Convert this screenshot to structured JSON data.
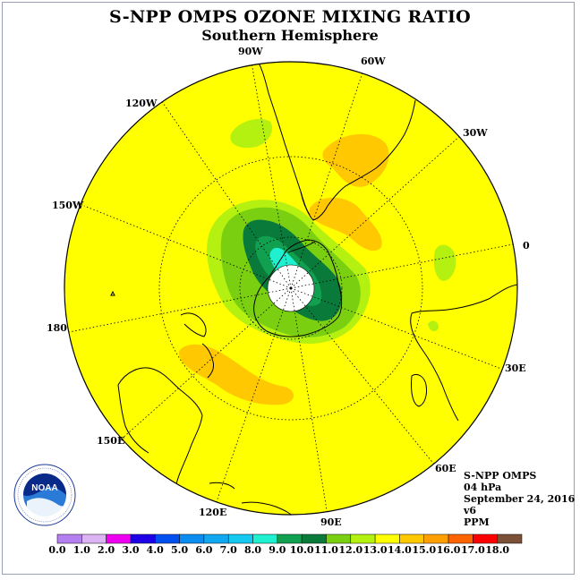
{
  "title": "S-NPP OMPS OZONE MIXING RATIO",
  "subtitle": "Southern Hemisphere",
  "longitude_labels": [
    {
      "id": "90w",
      "text": "90W"
    },
    {
      "id": "60w",
      "text": "60W"
    },
    {
      "id": "120w",
      "text": "120W"
    },
    {
      "id": "30w",
      "text": "30W"
    },
    {
      "id": "150w",
      "text": "150W"
    },
    {
      "id": "0",
      "text": "0"
    },
    {
      "id": "180",
      "text": "180"
    },
    {
      "id": "30e",
      "text": "30E"
    },
    {
      "id": "150e",
      "text": "150E"
    },
    {
      "id": "60e",
      "text": "60E"
    },
    {
      "id": "120e",
      "text": "120E"
    },
    {
      "id": "90e",
      "text": "90E"
    }
  ],
  "info": {
    "instrument": "S-NPP OMPS",
    "level": "04 hPa",
    "date": "September 24, 2016",
    "version": "v6",
    "units": "PPM"
  },
  "logo": {
    "text": "NOAA",
    "ring_text": "NATIONAL OCEANIC AND ATMOSPHERIC ADMINISTRATION · U.S. DEPARTMENT OF COMMERCE"
  },
  "colors": {
    "background_field": "#ffff00",
    "ocean_land_outline": "#000000",
    "pole": "#ffffff"
  },
  "color_scale": {
    "ticks": [
      "0.0",
      "1.0",
      "2.0",
      "3.0",
      "4.0",
      "5.0",
      "6.0",
      "7.0",
      "8.0",
      "9.0",
      "10.0",
      "11.0",
      "12.0",
      "13.0",
      "14.0",
      "15.0",
      "16.0",
      "17.0",
      "18.0"
    ],
    "bins": [
      "#b480f0",
      "#dcb4f4",
      "#f000f0",
      "#1e00e6",
      "#0050f0",
      "#0a8cf0",
      "#10a8f0",
      "#14c8f0",
      "#1ef0d0",
      "#10a050",
      "#0a7a3a",
      "#7ad010",
      "#b4f010",
      "#ffff00",
      "#ffc800",
      "#ffa000",
      "#ff6400",
      "#ff0000",
      "#7a5036"
    ]
  }
}
